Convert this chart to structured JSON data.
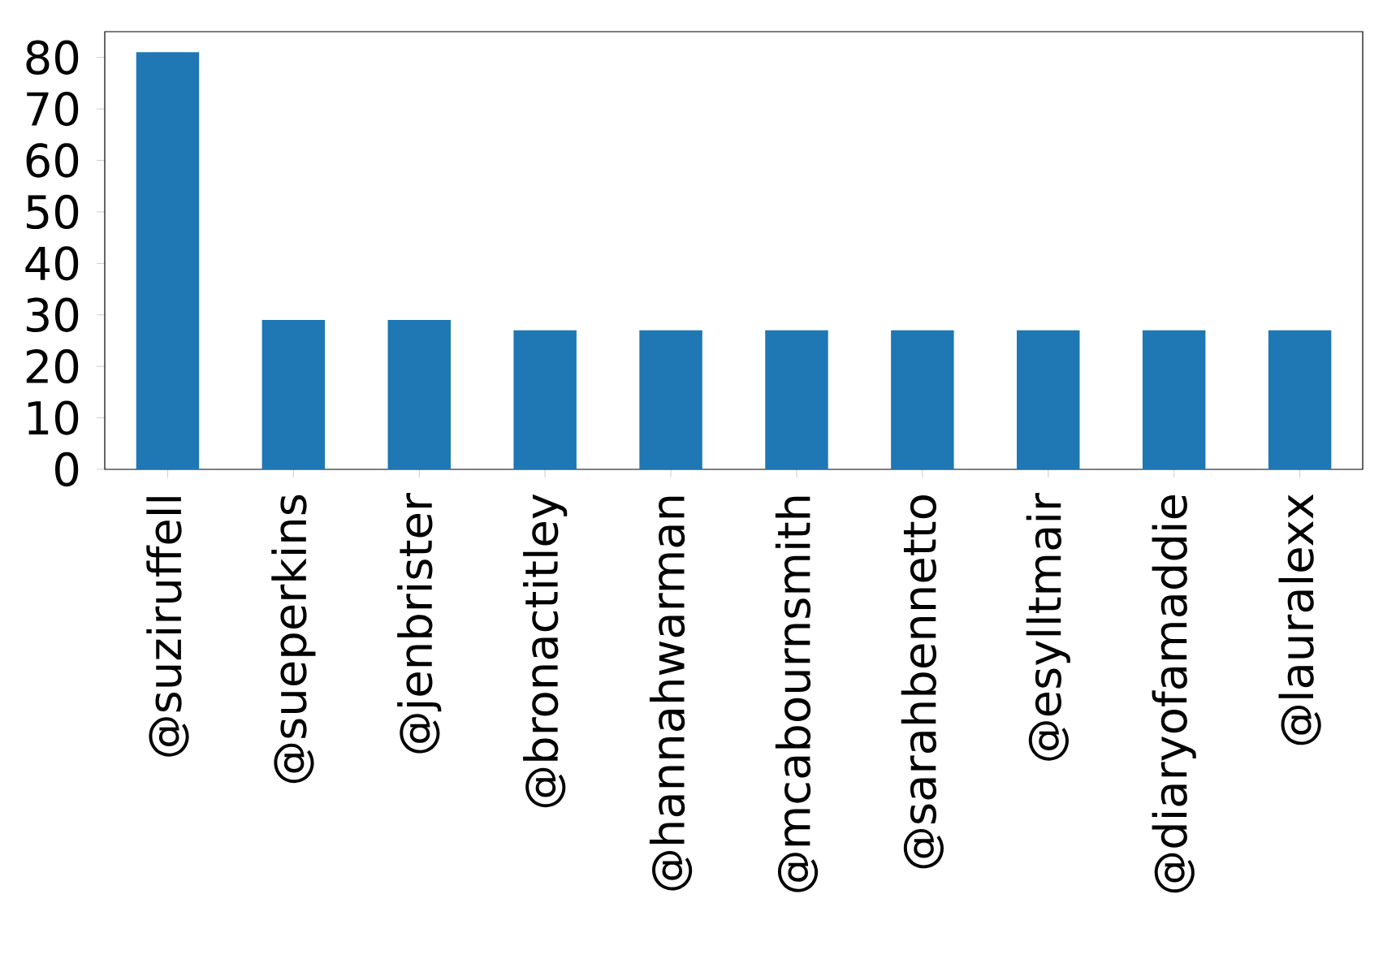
{
  "chart_data": {
    "type": "bar",
    "categories": [
      "@suziruffell",
      "@sueperkins",
      "@jenbrister",
      "@bronactitley",
      "@hannahwarman",
      "@mcabournsmith",
      "@sarahbennetto",
      "@esylltmair",
      "@diaryofamaddie",
      "@lauralexx"
    ],
    "values": [
      81,
      29,
      29,
      27,
      27,
      27,
      27,
      27,
      27,
      27
    ],
    "color": "#1f77b4",
    "ylim": [
      0,
      85
    ],
    "yticks": [
      0,
      10,
      20,
      30,
      40,
      50,
      60,
      70,
      80
    ]
  }
}
